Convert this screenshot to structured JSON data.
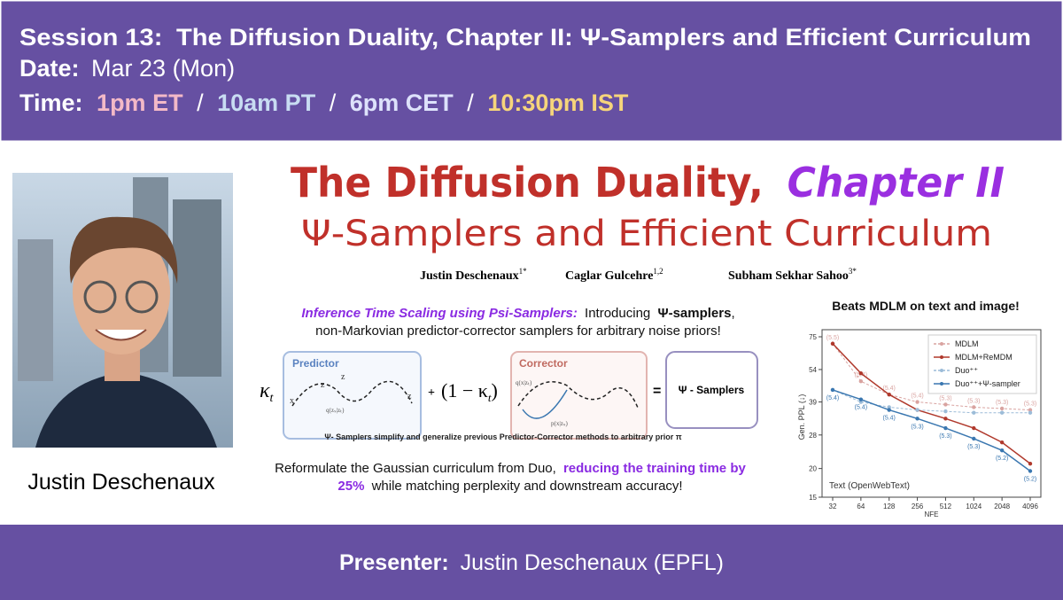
{
  "header": {
    "session_label": "Session 13:",
    "session_title": "The Diffusion Duality, Chapter II: Ψ-Samplers and Efficient Curriculum",
    "date_label": "Date:",
    "date": "Mar 23 (Mon)",
    "time_label": "Time:",
    "times": [
      "1pm ET",
      "10am PT",
      "6pm CET",
      "10:30pm IST"
    ],
    "separator": "/"
  },
  "photo_caption": "Justin Deschenaux",
  "slide": {
    "title": "The Diffusion Duality,",
    "title_highlight": "Chapter II",
    "subtitle": "Ψ-Samplers and Efficient Curriculum",
    "authors": [
      {
        "name": "Justin Deschenaux",
        "affil": "1*"
      },
      {
        "name": "Caglar Gulcehre",
        "affil": "1,2"
      },
      {
        "name": "Subham Sekhar Sahoo",
        "affil": "3*"
      }
    ],
    "intro": {
      "highlight": "Inference Time Scaling using Psi-Samplers:",
      "text": "Introducing",
      "bold": "Ψ-samplers",
      "punct": ",",
      "line2": "non-Markovian predictor-corrector samplers for arbitrary noise priors!"
    },
    "diagram": {
      "predictor": "Predictor",
      "corrector": "Corrector",
      "kappa": "κ",
      "kappa_sub": "t",
      "plus": "+",
      "one_minus": "(1 − κ",
      "one_minus_sub": "t",
      "close": ")",
      "equals": "=",
      "result": "Ψ - Samplers",
      "x": "x",
      "z_s": "z",
      "z_t": "z",
      "z_1": "z",
      "q_pred": "q(zₛ|zₜ)",
      "q_corr": "q(x|zₜ)",
      "p_corr": "p(x|zₛ)"
    },
    "caption": "Ψ- Samplers simplify and generalize previous Predictor-Corrector methods to arbitrary prior π",
    "curriculum": {
      "text_start": "Reformulate the Gaussian curriculum from Duo,",
      "highlight_1": "reducing the training time by",
      "highlight_2": "25%",
      "text_end": "while matching perplexity and downstream accuracy!"
    },
    "chart_heading": "Beats MDLM on text and image!"
  },
  "chart_data": {
    "type": "line",
    "annotation": "Text (OpenWebText)",
    "x_label": "NFE",
    "y_label": "Gen. PPL (↓)",
    "categories": [
      "32",
      "64",
      "128",
      "256",
      "512",
      "1024",
      "2048",
      "4096"
    ],
    "log_y": true,
    "ylim": [
      15,
      75
    ],
    "yticks": [
      15,
      20,
      28,
      39,
      54,
      75
    ],
    "grid": false,
    "legend": "upper right",
    "series": [
      {
        "name": "MDLM",
        "color": "#d9a3a0",
        "dashed": true,
        "values": [
          70,
          48,
          42,
          39,
          38,
          37,
          36.5,
          36
        ],
        "point_labels": [
          "(5.5)",
          "(5.4)",
          "(5.4)",
          "(5.4)",
          "(5.3)",
          "(5.3)",
          "(5.3)",
          "(5.3)"
        ]
      },
      {
        "name": "MDLM+ReMDM",
        "color": "#b0392c",
        "dashed": false,
        "values": [
          70,
          52,
          42,
          36,
          33,
          30,
          26,
          21
        ]
      },
      {
        "name": "Duo⁺⁺",
        "color": "#9cbcd8",
        "dashed": true,
        "values": [
          44,
          39,
          37,
          36,
          35.5,
          35,
          35,
          35
        ]
      },
      {
        "name": "Duo⁺⁺+Ψ-sampler",
        "color": "#3a77b0",
        "dashed": false,
        "values": [
          44,
          40,
          36,
          33,
          30,
          27,
          24,
          19.5
        ],
        "point_labels": [
          "(5.4)",
          "(5.4)",
          "(5.4)",
          "(5.3)",
          "(5.3)",
          "(5.3)",
          "(5.2)",
          "(5.2)"
        ]
      }
    ]
  },
  "footer": {
    "label": "Presenter:",
    "text": "Justin Deschenaux (EPFL)"
  }
}
